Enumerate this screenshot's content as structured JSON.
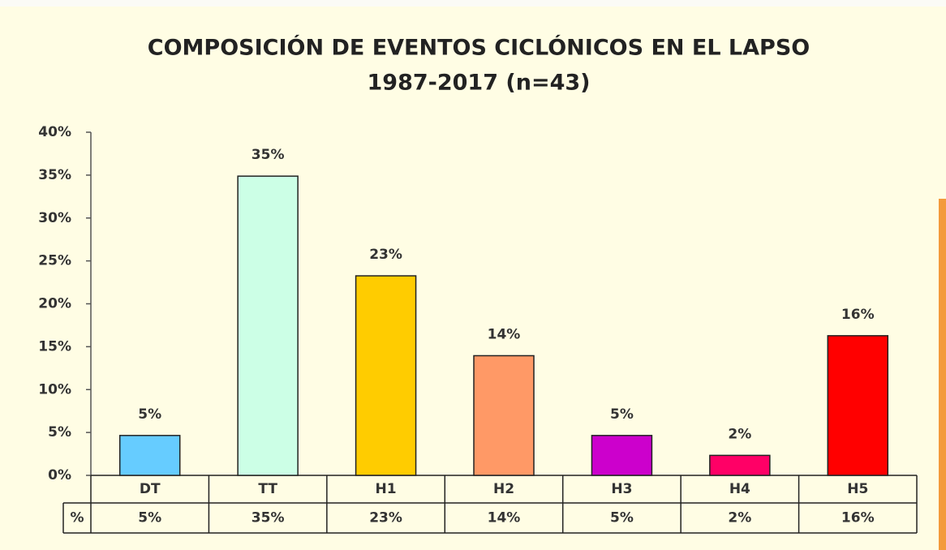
{
  "chart_data": {
    "type": "bar",
    "title": [
      "COMPOSICIÓN  DE EVENTOS CICLÓNICOS  EN EL LAPSO",
      "1987-2017  (n=43)"
    ],
    "categories": [
      "DT",
      "TT",
      "H1",
      "H2",
      "H3",
      "H4",
      "H5"
    ],
    "values": [
      4.65,
      34.88,
      23.26,
      13.95,
      4.65,
      2.33,
      16.28
    ],
    "value_labels": [
      "5%",
      "35%",
      "23%",
      "14%",
      "5%",
      "2%",
      "16%"
    ],
    "colors": [
      "#66ccff",
      "#ccffe6",
      "#ffcc00",
      "#ff9966",
      "#cc00cc",
      "#ff0066",
      "#ff0000"
    ],
    "table_row_label": "%",
    "ylim": [
      0,
      40
    ],
    "yticks": [
      {
        "value": 0,
        "label": "0%"
      },
      {
        "value": 5,
        "label": "5%"
      },
      {
        "value": 10,
        "label": "10%"
      },
      {
        "value": 15,
        "label": "15%"
      },
      {
        "value": 20,
        "label": "20%"
      },
      {
        "value": 25,
        "label": "25%"
      },
      {
        "value": 30,
        "label": "30%"
      },
      {
        "value": 35,
        "label": "35%"
      },
      {
        "value": 40,
        "label": "40%"
      }
    ],
    "grid": false
  }
}
